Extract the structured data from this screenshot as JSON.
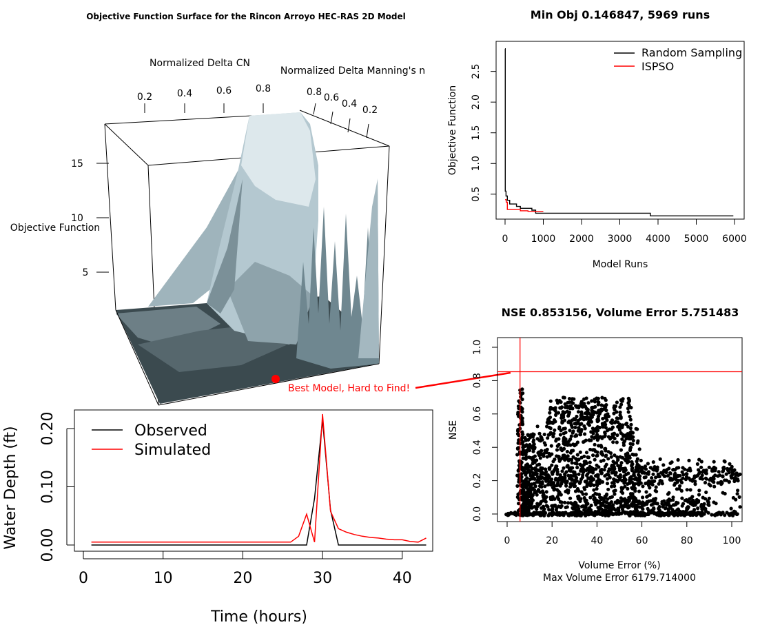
{
  "chart_data": [
    {
      "type": "surface",
      "title": "Objective Function Surface for the Rincon Arroyo HEC-RAS 2D Model",
      "xlabel": "Normalized Delta CN",
      "ylabel": "Normalized Delta Manning's n",
      "zlabel": "Objective Function",
      "x_ticks": [
        "0.2",
        "0.4",
        "0.6",
        "0.8"
      ],
      "y_ticks": [
        "0.8",
        "0.6",
        "0.4",
        "0.2"
      ],
      "z_ticks": [
        "5",
        "10",
        "15"
      ],
      "annotation": "Best Model, Hard to Find!",
      "colors": {
        "surface": "#b4c8d0",
        "surface_light": "#dde8ec",
        "surface_dark": "#2b3a40",
        "marker": "#ff0000"
      }
    },
    {
      "type": "line",
      "title": "Min Obj 0.146847, 5969 runs",
      "xlabel": "Model Runs",
      "ylabel": "Objective Function",
      "xlim": [
        0,
        6000
      ],
      "ylim": [
        0.15,
        2.9
      ],
      "x_ticks": [
        0,
        1000,
        2000,
        3000,
        4000,
        5000,
        6000
      ],
      "y_ticks": [
        "0.5",
        "1.0",
        "1.5",
        "2.0",
        "2.5"
      ],
      "legend_position": "top-right",
      "series": [
        {
          "name": "Random Sampling",
          "color": "#000000",
          "x": [
            0,
            5,
            5,
            25,
            25,
            60,
            60,
            120,
            120,
            300,
            300,
            400,
            400,
            700,
            700,
            800,
            800,
            3800,
            3800,
            5969
          ],
          "y": [
            2.87,
            2.87,
            0.55,
            0.55,
            0.47,
            0.47,
            0.4,
            0.4,
            0.34,
            0.34,
            0.3,
            0.3,
            0.27,
            0.27,
            0.24,
            0.24,
            0.19,
            0.19,
            0.147,
            0.147
          ]
        },
        {
          "name": "ISPSO",
          "color": "#ff0000",
          "x": [
            0,
            30,
            30,
            60,
            60,
            400,
            400,
            600,
            600,
            1000
          ],
          "y": [
            0.41,
            0.41,
            0.37,
            0.37,
            0.25,
            0.25,
            0.23,
            0.23,
            0.22,
            0.22
          ]
        }
      ]
    },
    {
      "type": "line",
      "xlabel": "Time (hours)",
      "ylabel": "Water Depth (ft)",
      "xlim": [
        0,
        44
      ],
      "ylim": [
        0,
        0.23
      ],
      "x_ticks": [
        0,
        10,
        20,
        30,
        40
      ],
      "y_ticks": [
        "0.00",
        "0.10",
        "0.20"
      ],
      "legend_position": "top-left",
      "series": [
        {
          "name": "Observed",
          "color": "#000000",
          "x": [
            1,
            28,
            29,
            30,
            31,
            32,
            43
          ],
          "y": [
            0,
            0,
            0.08,
            0.215,
            0.06,
            0,
            0
          ]
        },
        {
          "name": "Simulated",
          "color": "#ff0000",
          "x": [
            1,
            26,
            27,
            28,
            29,
            30,
            31,
            32,
            33,
            34,
            35,
            36,
            37,
            38,
            39,
            40,
            41,
            42,
            43
          ],
          "y": [
            0.005,
            0.005,
            0.015,
            0.053,
            0.005,
            0.225,
            0.058,
            0.028,
            0.022,
            0.018,
            0.015,
            0.013,
            0.012,
            0.01,
            0.009,
            0.009,
            0.006,
            0.005,
            0.012
          ]
        }
      ]
    },
    {
      "type": "scatter",
      "title": "NSE 0.853156, Volume Error 5.751483",
      "xlabel": "Volume Error (%)",
      "subtitle": "Max Volume Error 6179.714000",
      "ylabel": "NSE",
      "xlim": [
        -4,
        104
      ],
      "ylim": [
        -0.03,
        1.03
      ],
      "x_ticks": [
        0,
        20,
        40,
        60,
        80,
        100
      ],
      "y_ticks": [
        "0.0",
        "0.2",
        "0.4",
        "0.6",
        "0.8",
        "1.0"
      ],
      "best": {
        "x": 5.751483,
        "y": 0.853156
      },
      "point_count": 5969
    }
  ]
}
